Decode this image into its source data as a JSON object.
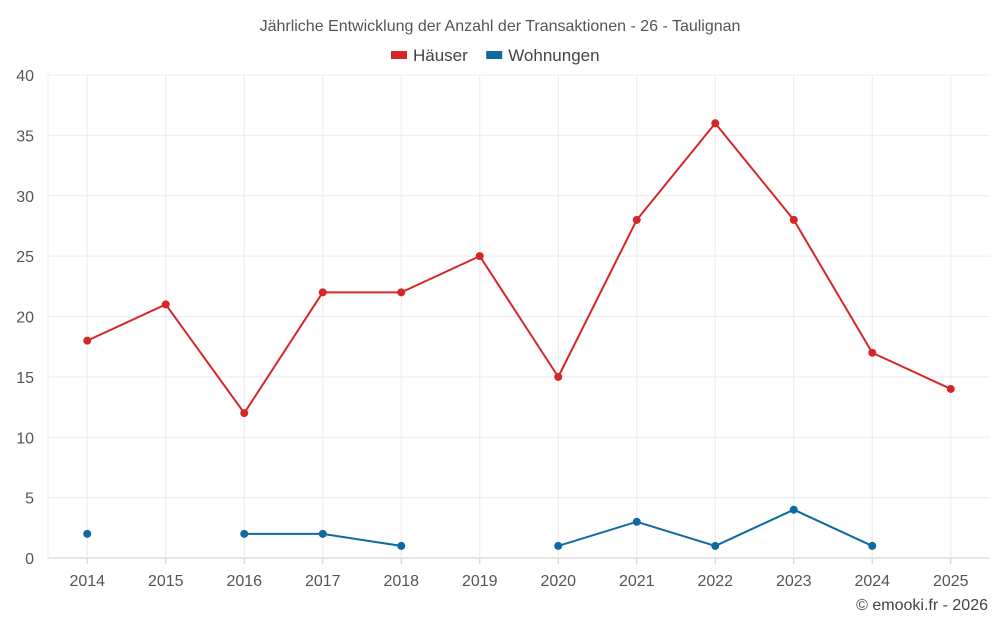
{
  "chart_data": {
    "type": "line",
    "title": "Jährliche Entwicklung der Anzahl der Transaktionen - 26 - Taulignan",
    "categories": [
      "2014",
      "2015",
      "2016",
      "2017",
      "2018",
      "2019",
      "2020",
      "2021",
      "2022",
      "2023",
      "2024",
      "2025"
    ],
    "series": [
      {
        "name": "Häuser",
        "color": "#d62728",
        "values": [
          18,
          21,
          12,
          22,
          22,
          25,
          15,
          28,
          36,
          28,
          17,
          14
        ]
      },
      {
        "name": "Wohnungen",
        "color": "#0f6aa1",
        "values": [
          2,
          null,
          2,
          2,
          1,
          null,
          1,
          3,
          1,
          4,
          1,
          null
        ]
      }
    ],
    "xlabel": "",
    "ylabel": "",
    "ylim": [
      0,
      40
    ],
    "yticks": [
      0,
      5,
      10,
      15,
      20,
      25,
      30,
      35,
      40
    ],
    "grid": true,
    "legend": "top-center"
  },
  "credit": "© emooki.fr - 2026"
}
